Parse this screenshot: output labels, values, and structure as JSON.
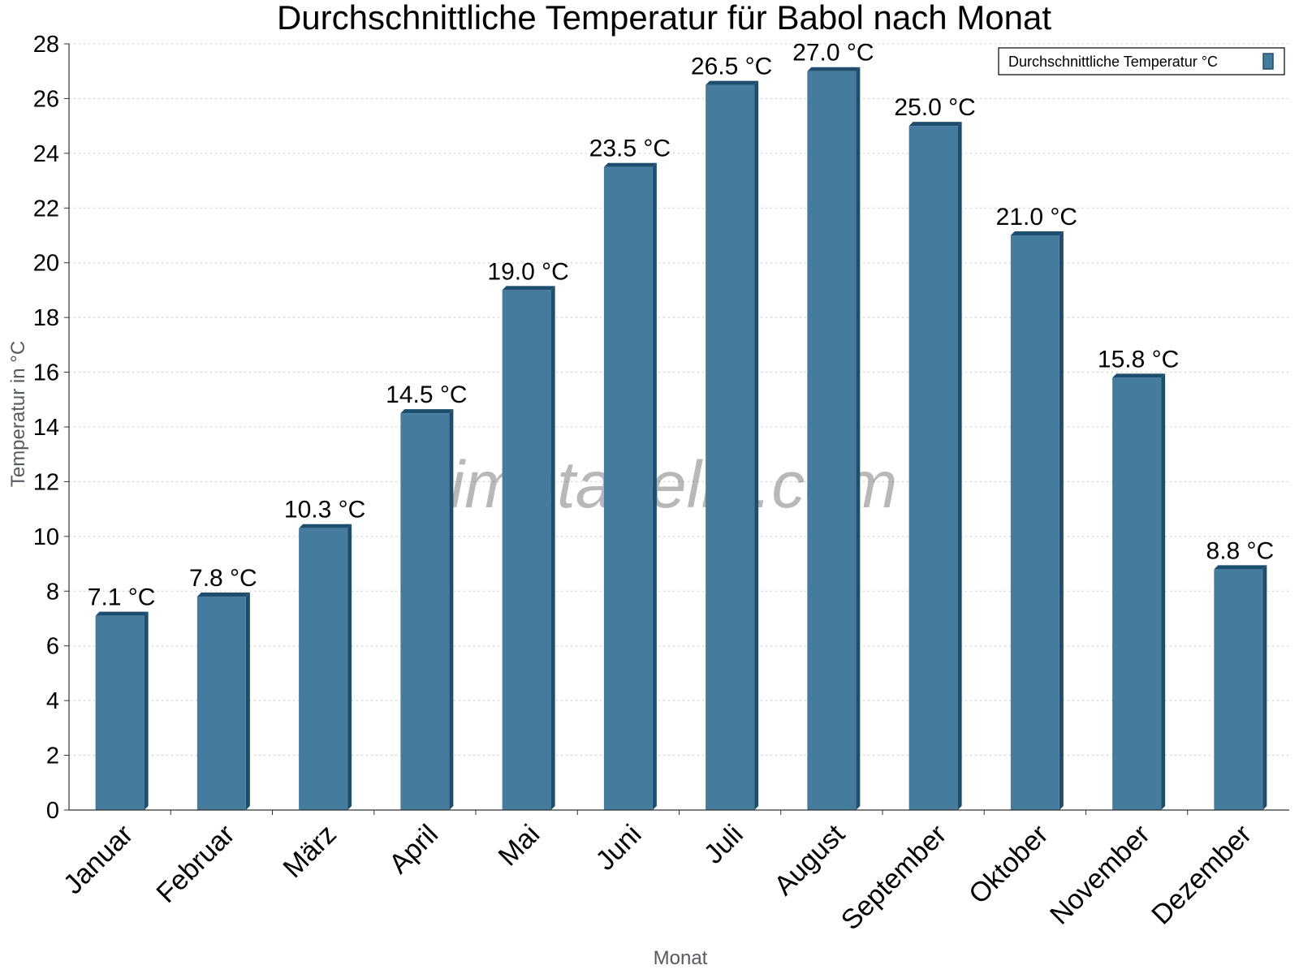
{
  "chart_data": {
    "type": "bar",
    "title": "Durchschnittliche Temperatur für Babol nach Monat",
    "xlabel": "Monat",
    "ylabel": "Temperatur in °C",
    "categories": [
      "Januar",
      "Februar",
      "März",
      "April",
      "Mai",
      "Juni",
      "Juli",
      "August",
      "September",
      "Oktober",
      "November",
      "Dezember"
    ],
    "series": [
      {
        "name": "Durchschnittliche Temperatur °C",
        "values": [
          7.1,
          7.8,
          10.3,
          14.5,
          19.0,
          23.5,
          26.5,
          27.0,
          25.0,
          21.0,
          15.8,
          8.8
        ],
        "data_labels": [
          "7.1 °C",
          "7.8 °C",
          "10.3 °C",
          "14.5 °C",
          "19.0 °C",
          "23.5 °C",
          "26.5 °C",
          "27.0 °C",
          "25.0 °C",
          "21.0 °C",
          "15.8 °C",
          "8.8 °C"
        ]
      }
    ],
    "ylim": [
      0,
      28
    ],
    "yticks": [
      0,
      2,
      4,
      6,
      8,
      10,
      12,
      14,
      16,
      18,
      20,
      22,
      24,
      26,
      28
    ],
    "grid": true,
    "legend_position": "top-right",
    "bar_color": "#457b9d",
    "bar_edge_color": "#1d4e6e",
    "watermark": "klimatabelle.com"
  }
}
